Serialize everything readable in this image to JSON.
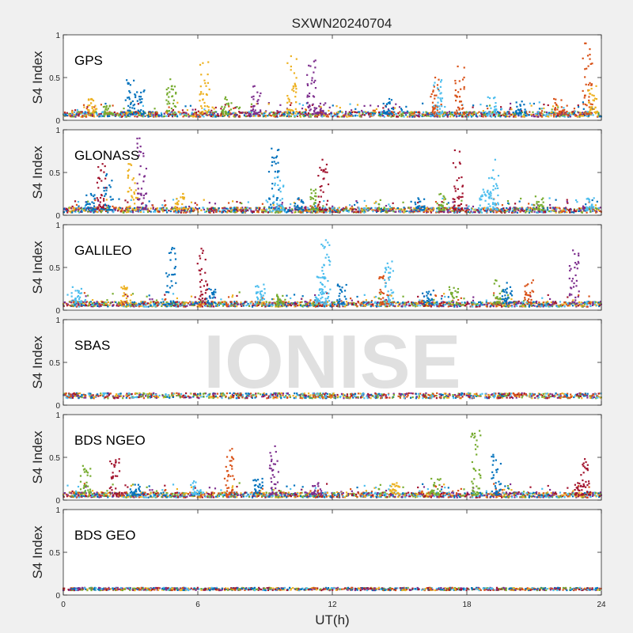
{
  "chart_data": {
    "type": "scatter",
    "title": "SXWN20240704",
    "watermark": "IONISE",
    "xlabel": "UT(h)",
    "xlim": [
      0,
      24
    ],
    "xticks": [
      0,
      6,
      12,
      18,
      24
    ],
    "xtick_labels": [
      "0",
      "6",
      "12",
      "18",
      "24"
    ],
    "ylabel": "S4 Index",
    "ylim": [
      0,
      1
    ],
    "yticks": [
      0,
      0.5,
      1
    ],
    "ytick_labels": [
      "0",
      "0.5",
      "1"
    ],
    "grid": false,
    "colors": [
      "#0072BD",
      "#D95319",
      "#EDB120",
      "#7E2F8E",
      "#77AC30",
      "#4DBEEE",
      "#A2142F"
    ],
    "panels": [
      {
        "name": "GPS",
        "baseline": 0.07,
        "peaks": [
          {
            "t": 1.3,
            "v": 0.25,
            "c": 2
          },
          {
            "t": 2.0,
            "v": 0.17,
            "c": 4
          },
          {
            "t": 3.0,
            "v": 0.47,
            "c": 0
          },
          {
            "t": 3.4,
            "v": 0.35,
            "c": 0
          },
          {
            "t": 4.8,
            "v": 0.48,
            "c": 4
          },
          {
            "t": 6.3,
            "v": 0.68,
            "c": 2
          },
          {
            "t": 7.3,
            "v": 0.27,
            "c": 4
          },
          {
            "t": 8.6,
            "v": 0.4,
            "c": 3
          },
          {
            "t": 10.2,
            "v": 0.75,
            "c": 2
          },
          {
            "t": 11.1,
            "v": 0.7,
            "c": 3
          },
          {
            "t": 11.5,
            "v": 0.2,
            "c": 3
          },
          {
            "t": 14.5,
            "v": 0.25,
            "c": 0
          },
          {
            "t": 16.6,
            "v": 0.5,
            "c": 1
          },
          {
            "t": 16.7,
            "v": 0.47,
            "c": 5
          },
          {
            "t": 17.7,
            "v": 0.63,
            "c": 1
          },
          {
            "t": 19.1,
            "v": 0.27,
            "c": 5
          },
          {
            "t": 20.4,
            "v": 0.22,
            "c": 0
          },
          {
            "t": 22.1,
            "v": 0.25,
            "c": 1
          },
          {
            "t": 23.4,
            "v": 0.9,
            "c": 1
          },
          {
            "t": 23.6,
            "v": 0.4,
            "c": 2
          }
        ]
      },
      {
        "name": "GLONASS",
        "baseline": 0.06,
        "peaks": [
          {
            "t": 1.2,
            "v": 0.25,
            "c": 0
          },
          {
            "t": 1.7,
            "v": 0.6,
            "c": 6
          },
          {
            "t": 2.0,
            "v": 0.48,
            "c": 0
          },
          {
            "t": 3.1,
            "v": 0.6,
            "c": 2
          },
          {
            "t": 3.5,
            "v": 0.9,
            "c": 3
          },
          {
            "t": 5.2,
            "v": 0.25,
            "c": 2
          },
          {
            "t": 9.4,
            "v": 0.78,
            "c": 0
          },
          {
            "t": 9.6,
            "v": 0.45,
            "c": 5
          },
          {
            "t": 10.5,
            "v": 0.2,
            "c": 0
          },
          {
            "t": 11.2,
            "v": 0.3,
            "c": 4
          },
          {
            "t": 11.6,
            "v": 0.65,
            "c": 6
          },
          {
            "t": 15.9,
            "v": 0.2,
            "c": 0
          },
          {
            "t": 16.9,
            "v": 0.25,
            "c": 4
          },
          {
            "t": 17.6,
            "v": 0.76,
            "c": 6
          },
          {
            "t": 18.8,
            "v": 0.3,
            "c": 5
          },
          {
            "t": 19.2,
            "v": 0.65,
            "c": 5
          },
          {
            "t": 21.2,
            "v": 0.22,
            "c": 4
          },
          {
            "t": 23.5,
            "v": 0.2,
            "c": 5
          }
        ]
      },
      {
        "name": "GALILEO",
        "baseline": 0.07,
        "peaks": [
          {
            "t": 0.6,
            "v": 0.27,
            "c": 5
          },
          {
            "t": 2.8,
            "v": 0.28,
            "c": 2
          },
          {
            "t": 4.8,
            "v": 0.73,
            "c": 0
          },
          {
            "t": 6.2,
            "v": 0.72,
            "c": 6
          },
          {
            "t": 6.6,
            "v": 0.25,
            "c": 0
          },
          {
            "t": 8.8,
            "v": 0.3,
            "c": 5
          },
          {
            "t": 9.7,
            "v": 0.18,
            "c": 4
          },
          {
            "t": 11.5,
            "v": 0.5,
            "c": 5
          },
          {
            "t": 11.7,
            "v": 0.82,
            "c": 5
          },
          {
            "t": 12.4,
            "v": 0.3,
            "c": 0
          },
          {
            "t": 14.3,
            "v": 0.4,
            "c": 1
          },
          {
            "t": 14.5,
            "v": 0.57,
            "c": 5
          },
          {
            "t": 16.3,
            "v": 0.23,
            "c": 0
          },
          {
            "t": 17.4,
            "v": 0.27,
            "c": 4
          },
          {
            "t": 19.4,
            "v": 0.35,
            "c": 4
          },
          {
            "t": 19.8,
            "v": 0.32,
            "c": 0
          },
          {
            "t": 20.8,
            "v": 0.35,
            "c": 1
          },
          {
            "t": 22.8,
            "v": 0.7,
            "c": 3
          }
        ]
      },
      {
        "name": "SBAS",
        "baseline": 0.11,
        "peaks": []
      },
      {
        "name": "BDS NGEO",
        "baseline": 0.06,
        "peaks": [
          {
            "t": 1.0,
            "v": 0.4,
            "c": 4
          },
          {
            "t": 2.3,
            "v": 0.48,
            "c": 6
          },
          {
            "t": 3.2,
            "v": 0.18,
            "c": 0
          },
          {
            "t": 5.9,
            "v": 0.22,
            "c": 5
          },
          {
            "t": 7.4,
            "v": 0.6,
            "c": 1
          },
          {
            "t": 8.7,
            "v": 0.25,
            "c": 0
          },
          {
            "t": 9.4,
            "v": 0.63,
            "c": 3
          },
          {
            "t": 11.3,
            "v": 0.2,
            "c": 3
          },
          {
            "t": 14.8,
            "v": 0.2,
            "c": 2
          },
          {
            "t": 16.6,
            "v": 0.25,
            "c": 4
          },
          {
            "t": 18.4,
            "v": 0.81,
            "c": 4
          },
          {
            "t": 19.3,
            "v": 0.53,
            "c": 0
          },
          {
            "t": 23.3,
            "v": 0.48,
            "c": 6
          },
          {
            "t": 23.0,
            "v": 0.2,
            "c": 6
          }
        ]
      },
      {
        "name": "BDS GEO",
        "baseline": 0.07,
        "peaks": []
      }
    ]
  }
}
